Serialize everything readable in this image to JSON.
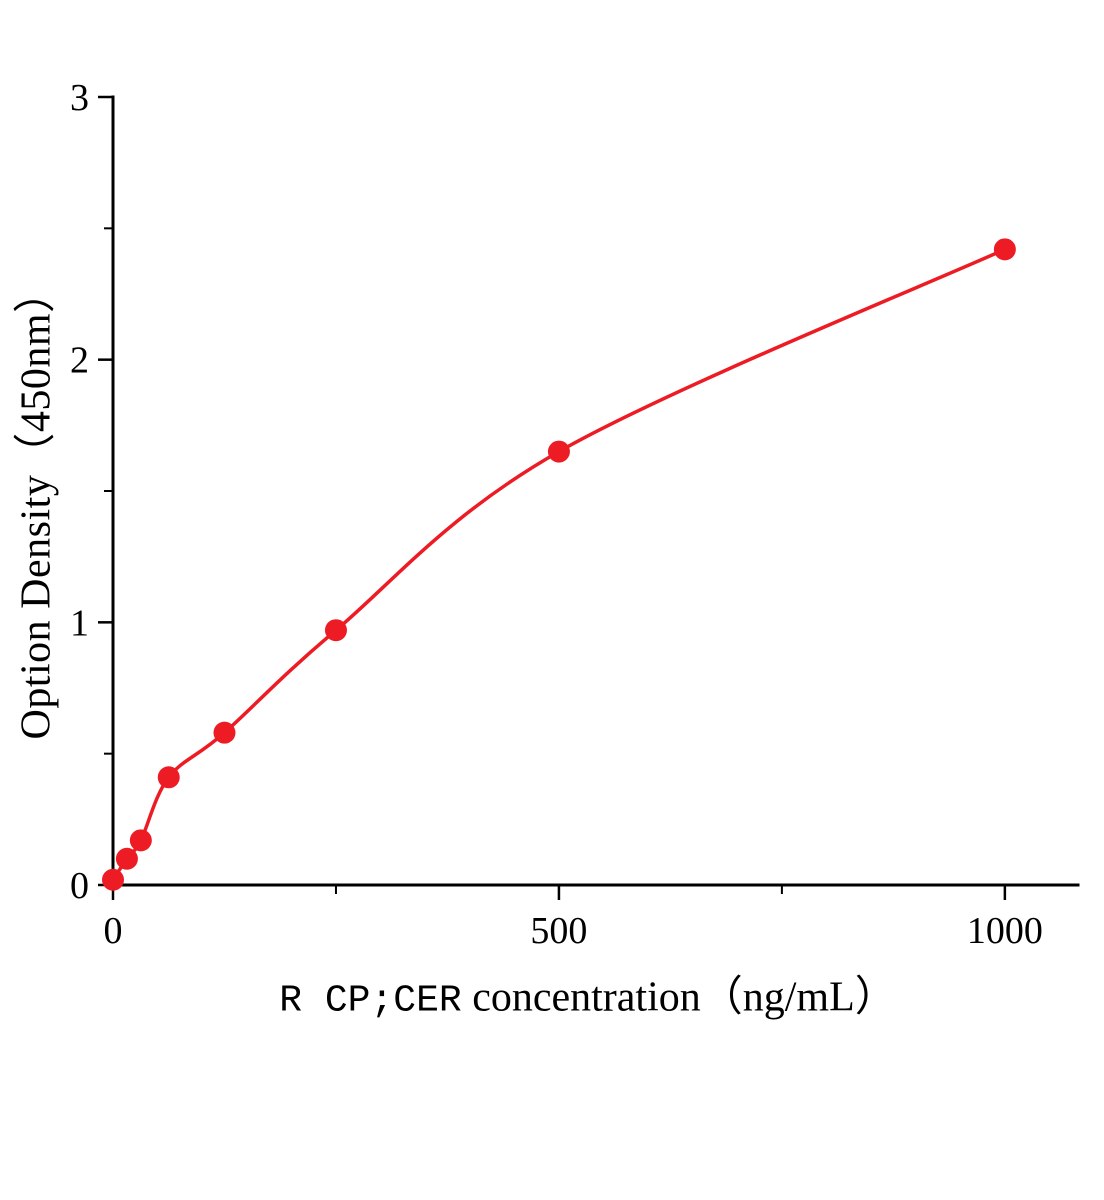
{
  "page": {
    "background_color": "#ffffff"
  },
  "chart_data": {
    "type": "scatter",
    "title": "",
    "xlabel_prefix": "R CP;CER",
    "xlabel_rest": " concentration（ng/mL）",
    "ylabel": "Option Density（450nm）",
    "x": [
      0,
      15.6,
      31.2,
      62.5,
      125,
      250,
      500,
      1000
    ],
    "y": [
      0.02,
      0.1,
      0.17,
      0.41,
      0.58,
      0.97,
      1.65,
      2.42
    ],
    "xlim": [
      0,
      1082
    ],
    "ylim": [
      0,
      3
    ],
    "x_major_ticks": [
      0,
      500,
      1000
    ],
    "x_minor_ticks": [
      250,
      750
    ],
    "y_major_ticks": [
      0,
      1,
      2,
      3
    ],
    "y_minor_ticks": [
      0.5,
      1.5,
      2.5
    ],
    "curve_color": "#ed1c24",
    "point_color": "#ed1c24",
    "axis_color": "#000000",
    "grid": false,
    "legend": "none"
  }
}
